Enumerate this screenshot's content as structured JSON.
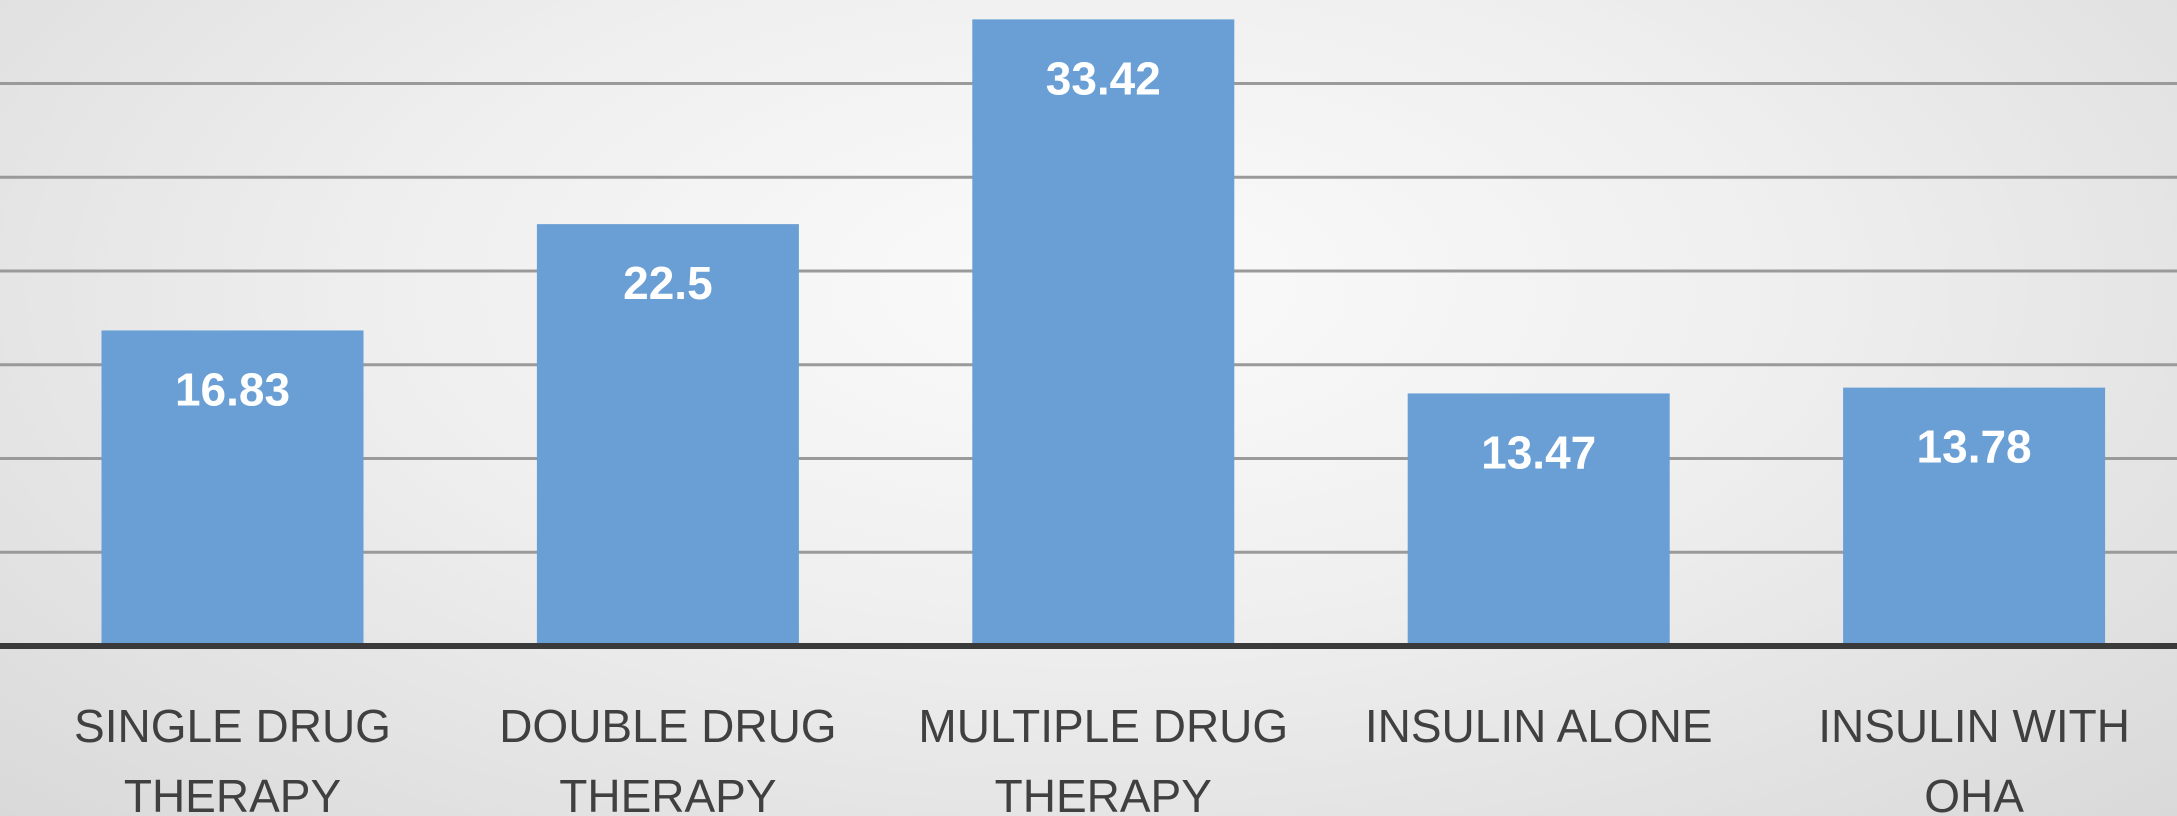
{
  "chart_data": {
    "type": "bar",
    "title": "",
    "xlabel": "",
    "ylabel": "",
    "categories": [
      [
        "SINGLE DRUG",
        "THERAPY"
      ],
      [
        "DOUBLE DRUG",
        "THERAPY"
      ],
      [
        "MULTIPLE DRUG",
        "THERAPY"
      ],
      [
        "INSULIN ALONE"
      ],
      [
        "INSULIN WITH",
        "OHA"
      ]
    ],
    "values": [
      16.83,
      22.5,
      33.42,
      13.47,
      13.78
    ],
    "value_labels": [
      "16.83",
      "22.5",
      "33.42",
      "13.47",
      "13.78"
    ],
    "ylim": [
      0,
      35
    ],
    "gridline_step": 5,
    "grid": true,
    "colors": {
      "bar": "#6a9fd6",
      "bar_label": "#ffffff",
      "category_label": "#404040",
      "gridline": "#9a9a9a",
      "baseline": "#3a3a3a"
    }
  }
}
